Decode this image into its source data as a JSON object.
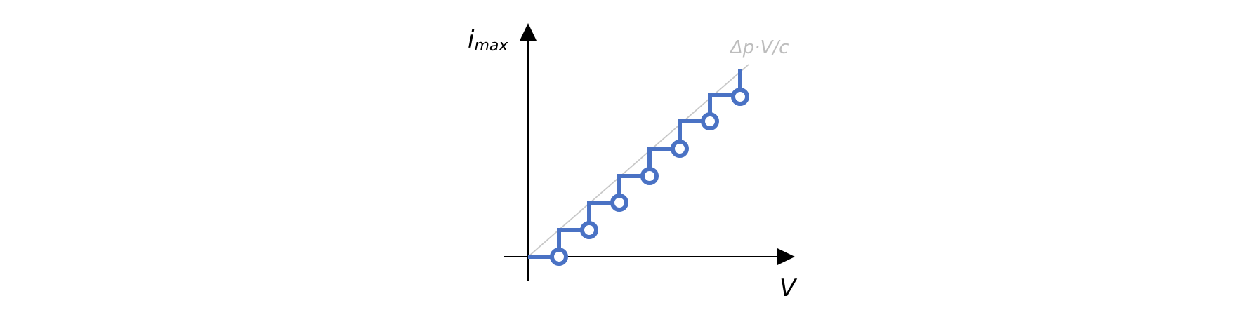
{
  "diagram": {
    "y_axis_label_base": "i",
    "y_axis_label_subscript": "max",
    "x_axis_label": "V",
    "line_label": "Δp·V/c",
    "colors": {
      "axis": "#000000",
      "staircase": "#4a72c4",
      "reference_line": "#c8c8c8",
      "reference_label": "#bdbdbd",
      "open_circle_fill": "#ffffff"
    },
    "steps": 7
  }
}
